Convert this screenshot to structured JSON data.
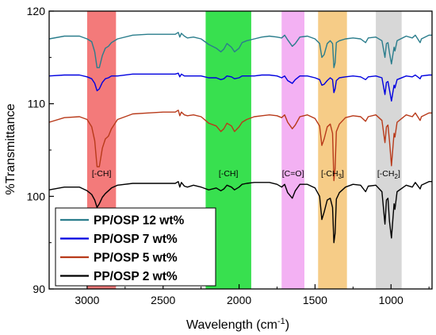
{
  "chart_data": {
    "type": "line",
    "xlabel": "Wavelength (cm",
    "xlabel_sup": "-1",
    "xlabel_close": ")",
    "ylabel": "%Transmittance",
    "xlim": [
      3250,
      730
    ],
    "ylim": [
      90,
      120
    ],
    "x_reversed": true,
    "xticks": [
      3000,
      2500,
      2000,
      1500,
      1000
    ],
    "yticks": [
      90,
      100,
      110,
      120
    ],
    "grid": false,
    "legend_position": "bottom-left",
    "bands": [
      {
        "label": "[-CH]",
        "x_start": 3000,
        "x_end": 2810,
        "color": "#f26b6b"
      },
      {
        "label": "[-CH]",
        "x_start": 2220,
        "x_end": 1920,
        "color": "#22dd3c"
      },
      {
        "label": "[C=O]",
        "x_start": 1720,
        "x_end": 1570,
        "color": "#f2a8f2"
      },
      {
        "label_main": "[-CH",
        "label_sub": "3",
        "label_end": "]",
        "x_start": 1480,
        "x_end": 1290,
        "color": "#f5c77a"
      },
      {
        "label_main": "[-CH",
        "label_sub": "2",
        "label_end": "]",
        "x_start": 1100,
        "x_end": 930,
        "color": "#d3d3d3"
      }
    ],
    "series": [
      {
        "name": "PP/OSP 12 wt%",
        "color": "#2a7d8c",
        "x": [
          3250,
          3150,
          3050,
          3000,
          2970,
          2950,
          2935,
          2920,
          2900,
          2880,
          2860,
          2840,
          2800,
          2700,
          2600,
          2500,
          2420,
          2400,
          2390,
          2380,
          2360,
          2340,
          2300,
          2250,
          2200,
          2150,
          2120,
          2100,
          2080,
          2050,
          2030,
          2000,
          1980,
          1950,
          1900,
          1850,
          1800,
          1750,
          1720,
          1700,
          1680,
          1650,
          1630,
          1600,
          1550,
          1500,
          1470,
          1455,
          1440,
          1420,
          1400,
          1385,
          1376,
          1368,
          1360,
          1340,
          1300,
          1250,
          1200,
          1167,
          1150,
          1100,
          1060,
          1040,
          1030,
          1020,
          1010,
          997,
          980,
          974,
          960,
          900,
          860,
          840,
          808,
          800,
          750,
          730
        ],
        "y": [
          117.0,
          117.3,
          117.3,
          117.0,
          116.7,
          115.6,
          113.9,
          113.9,
          115.2,
          116.0,
          116.2,
          116.6,
          117.0,
          117.4,
          117.5,
          117.5,
          117.5,
          117.7,
          117.2,
          117.6,
          117.3,
          117.1,
          117.2,
          117.0,
          116.4,
          116.0,
          115.6,
          115.9,
          116.5,
          116.1,
          115.6,
          116.0,
          116.6,
          116.8,
          117.0,
          117.2,
          117.3,
          117.2,
          117.1,
          117.4,
          116.9,
          116.2,
          116.5,
          117.2,
          117.3,
          117.0,
          116.5,
          115.0,
          115.3,
          116.5,
          116.8,
          116.5,
          113.9,
          114.4,
          116.6,
          116.8,
          117.0,
          117.1,
          117.0,
          116.6,
          117.1,
          117.2,
          116.8,
          115.0,
          116.5,
          116.6,
          115.5,
          114.3,
          116.1,
          115.7,
          116.8,
          117.3,
          117.1,
          117.4,
          116.6,
          117.0,
          117.4,
          117.4
        ]
      },
      {
        "name": "PP/OSP 7 wt%",
        "color": "#0000e0",
        "x": [
          3250,
          3150,
          3050,
          3000,
          2970,
          2950,
          2935,
          2920,
          2900,
          2880,
          2860,
          2840,
          2800,
          2700,
          2600,
          2500,
          2420,
          2400,
          2390,
          2380,
          2360,
          2340,
          2300,
          2250,
          2200,
          2150,
          2120,
          2100,
          2080,
          2050,
          2030,
          2000,
          1980,
          1950,
          1900,
          1850,
          1800,
          1750,
          1720,
          1700,
          1680,
          1650,
          1630,
          1600,
          1550,
          1500,
          1470,
          1455,
          1440,
          1420,
          1400,
          1385,
          1376,
          1368,
          1360,
          1340,
          1300,
          1250,
          1200,
          1167,
          1150,
          1100,
          1060,
          1040,
          1030,
          1020,
          1010,
          997,
          980,
          974,
          960,
          900,
          860,
          840,
          808,
          800,
          750,
          730
        ],
        "y": [
          113.0,
          113.1,
          113.1,
          112.9,
          112.7,
          112.2,
          111.4,
          111.6,
          112.3,
          112.7,
          112.8,
          113.0,
          113.0,
          113.2,
          113.2,
          113.2,
          113.2,
          113.3,
          112.9,
          113.2,
          113.0,
          113.0,
          113.0,
          113.0,
          112.8,
          112.8,
          112.6,
          112.7,
          113.0,
          112.9,
          112.7,
          112.8,
          113.0,
          113.0,
          113.0,
          113.1,
          113.1,
          113.0,
          112.8,
          113.0,
          112.5,
          112.2,
          112.6,
          113.0,
          113.0,
          112.8,
          112.6,
          112.0,
          112.1,
          112.5,
          112.8,
          112.6,
          111.2,
          111.6,
          112.5,
          112.8,
          112.9,
          113.0,
          112.9,
          112.6,
          112.9,
          113.0,
          112.8,
          111.0,
          112.3,
          112.4,
          111.5,
          110.3,
          112.0,
          111.7,
          112.6,
          113.0,
          112.9,
          113.1,
          112.7,
          113.0,
          113.1,
          113.1
        ]
      },
      {
        "name": "PP/OSP 5 wt%",
        "color": "#b83a1a",
        "x": [
          3250,
          3150,
          3050,
          3000,
          2970,
          2950,
          2935,
          2920,
          2900,
          2880,
          2860,
          2840,
          2800,
          2700,
          2600,
          2500,
          2420,
          2400,
          2390,
          2380,
          2360,
          2340,
          2300,
          2250,
          2200,
          2150,
          2120,
          2100,
          2080,
          2050,
          2030,
          2000,
          1980,
          1950,
          1900,
          1850,
          1800,
          1750,
          1720,
          1700,
          1680,
          1650,
          1630,
          1600,
          1550,
          1500,
          1470,
          1455,
          1440,
          1420,
          1400,
          1385,
          1376,
          1368,
          1360,
          1340,
          1300,
          1250,
          1200,
          1167,
          1150,
          1100,
          1060,
          1040,
          1030,
          1020,
          1010,
          997,
          980,
          974,
          960,
          900,
          860,
          840,
          808,
          800,
          750,
          730
        ],
        "y": [
          108.0,
          108.5,
          108.6,
          108.3,
          107.5,
          106.0,
          103.2,
          103.2,
          105.2,
          106.2,
          106.5,
          107.3,
          108.3,
          108.9,
          109.0,
          109.1,
          109.1,
          109.3,
          108.7,
          109.1,
          108.8,
          108.7,
          108.8,
          108.6,
          107.9,
          107.6,
          107.0,
          107.3,
          107.9,
          107.6,
          107.0,
          107.5,
          108.0,
          108.3,
          108.6,
          108.7,
          108.8,
          108.7,
          108.5,
          108.8,
          108.0,
          107.3,
          107.7,
          108.6,
          108.8,
          108.4,
          107.6,
          105.5,
          106.2,
          107.5,
          107.8,
          106.8,
          101.7,
          103.0,
          107.0,
          107.8,
          108.5,
          108.7,
          108.6,
          108.1,
          108.6,
          108.8,
          108.2,
          105.8,
          107.5,
          107.7,
          106.0,
          103.3,
          106.8,
          106.4,
          108.0,
          108.8,
          108.6,
          109.0,
          108.2,
          108.6,
          109.0,
          109.0
        ]
      },
      {
        "name": "PP/OSP 2 wt%",
        "color": "#000000",
        "x": [
          3250,
          3150,
          3050,
          3000,
          2970,
          2950,
          2935,
          2920,
          2900,
          2880,
          2860,
          2840,
          2800,
          2700,
          2600,
          2500,
          2420,
          2400,
          2390,
          2380,
          2360,
          2340,
          2300,
          2250,
          2200,
          2150,
          2120,
          2100,
          2080,
          2050,
          2030,
          2000,
          1980,
          1950,
          1900,
          1850,
          1800,
          1750,
          1720,
          1700,
          1680,
          1650,
          1630,
          1600,
          1550,
          1500,
          1470,
          1455,
          1440,
          1420,
          1400,
          1385,
          1376,
          1368,
          1360,
          1340,
          1300,
          1250,
          1200,
          1167,
          1150,
          1100,
          1060,
          1040,
          1030,
          1020,
          1010,
          997,
          980,
          974,
          960,
          900,
          860,
          840,
          808,
          800,
          750,
          730
        ],
        "y": [
          100.7,
          101.0,
          101.0,
          100.6,
          100.2,
          99.6,
          98.8,
          99.2,
          99.9,
          100.3,
          100.6,
          100.9,
          101.2,
          101.4,
          101.4,
          101.4,
          101.4,
          101.6,
          101.0,
          101.5,
          101.1,
          101.0,
          101.2,
          101.0,
          100.7,
          100.9,
          100.6,
          100.8,
          101.2,
          101.0,
          100.7,
          101.0,
          101.3,
          101.4,
          101.5,
          101.5,
          101.5,
          101.3,
          101.0,
          101.3,
          100.4,
          99.8,
          100.6,
          101.3,
          101.3,
          100.9,
          100.0,
          97.5,
          98.3,
          99.6,
          99.8,
          98.8,
          95.0,
          96.0,
          99.7,
          100.4,
          101.0,
          101.3,
          101.2,
          100.5,
          101.1,
          101.2,
          100.5,
          97.0,
          99.6,
          99.8,
          97.3,
          95.5,
          99.2,
          98.6,
          100.5,
          101.2,
          101.0,
          101.5,
          100.8,
          101.2,
          101.6,
          101.6
        ]
      }
    ]
  }
}
